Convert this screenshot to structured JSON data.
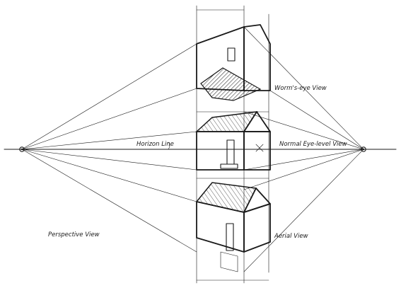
{
  "labels": {
    "worms_eye": "Worm's-eye View",
    "normal_eye": "Normal Eye-level View",
    "horizon": "Horizon Line",
    "aerial": "Aerial View",
    "perspective": "Perspective View"
  },
  "colors": {
    "ink": "#1a1a1a",
    "paper": "#ffffff"
  }
}
